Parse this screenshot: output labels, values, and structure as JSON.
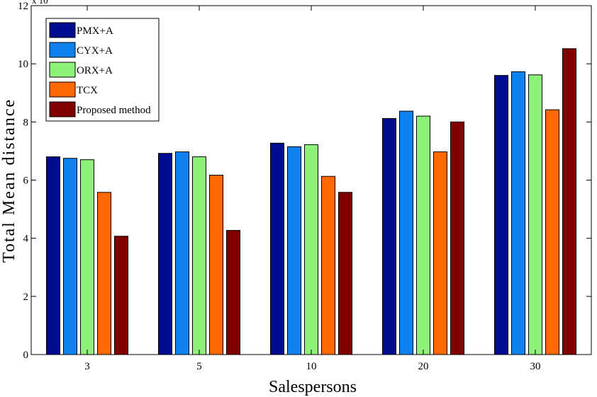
{
  "chart_data": {
    "type": "bar",
    "title": "",
    "xlabel": "Salespersons",
    "ylabel": "Total Mean distance",
    "exponent_label": "x 10",
    "categories": [
      "3",
      "5",
      "10",
      "20",
      "30"
    ],
    "ylim": [
      0,
      12
    ],
    "yticks": [
      "0",
      "2",
      "4",
      "6",
      "8",
      "10",
      "12"
    ],
    "grid": false,
    "legend_position": "top-left",
    "series": [
      {
        "name": "PMX+A",
        "color": "#000c8f",
        "values": [
          6.8,
          6.92,
          7.27,
          8.12,
          9.6
        ]
      },
      {
        "name": "CYX+A",
        "color": "#0f82f0",
        "values": [
          6.75,
          6.97,
          7.15,
          8.37,
          9.73
        ]
      },
      {
        "name": "ORX+A",
        "color": "#8ef27a",
        "values": [
          6.7,
          6.8,
          7.22,
          8.2,
          9.62
        ]
      },
      {
        "name": "TCX",
        "color": "#ff6a06",
        "values": [
          5.58,
          6.17,
          6.13,
          6.97,
          8.42
        ]
      },
      {
        "name": "Proposed method",
        "color": "#800000",
        "values": [
          4.07,
          4.27,
          5.58,
          8.0,
          10.52
        ]
      }
    ]
  }
}
